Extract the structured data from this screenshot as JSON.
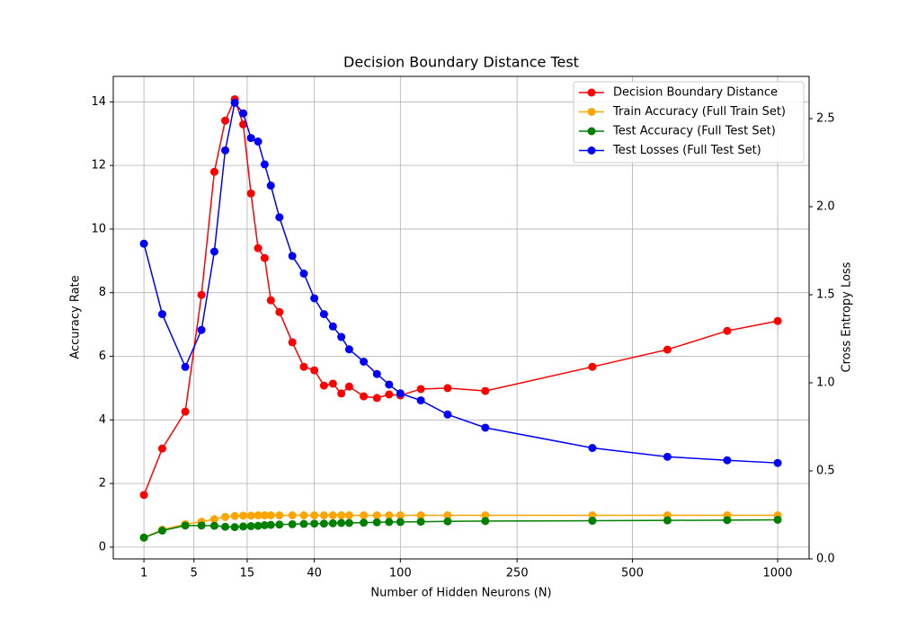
{
  "chart_data": {
    "type": "line",
    "title": "Decision Boundary Distance Test",
    "xlabel": "Number of Hidden Neurons (N)",
    "ylabel": "Accuracy Rate",
    "y2label": "Cross Entropy Loss",
    "xscale": "cbrt",
    "grid": true,
    "legend": "upper right",
    "x": [
      1,
      2,
      4,
      6,
      8,
      10,
      12,
      14,
      16,
      18,
      20,
      22,
      25,
      30,
      35,
      40,
      45,
      50,
      55,
      60,
      70,
      80,
      90,
      100,
      120,
      150,
      200,
      400,
      600,
      800,
      1000
    ],
    "xlim": [
      0.18,
      1140
    ],
    "xticks": [
      1,
      5,
      15,
      40,
      100,
      250,
      500,
      1000
    ],
    "ylim": [
      -0.37,
      14.8
    ],
    "yticks": [
      0,
      2,
      4,
      6,
      8,
      10,
      12,
      14
    ],
    "y2lim": [
      0,
      2.74
    ],
    "y2ticks": [
      {
        "value": 0,
        "label": "0.0"
      },
      {
        "value": 0.5,
        "label": "0.5"
      },
      {
        "value": 1,
        "label": "1.0"
      },
      {
        "value": 1.5,
        "label": "1.5"
      },
      {
        "value": 2,
        "label": "2.0"
      },
      {
        "value": 2.5,
        "label": "2.5"
      }
    ],
    "series": [
      {
        "name": "Decision Boundary Distance",
        "color": "#ff0000",
        "values": [
          1.64,
          3.1,
          4.26,
          7.93,
          11.8,
          13.41,
          14.08,
          13.29,
          11.12,
          9.4,
          9.09,
          7.76,
          7.39,
          6.44,
          5.67,
          5.56,
          5.08,
          5.14,
          4.83,
          5.05,
          4.74,
          4.69,
          4.8,
          4.77,
          4.97,
          5.0,
          4.91,
          5.67,
          6.21,
          6.8,
          7.11
        ]
      },
      {
        "name": "Train Accuracy (Full Train Set)",
        "color": "#ffa500",
        "values": [
          0.3,
          0.55,
          0.72,
          0.8,
          0.88,
          0.95,
          0.98,
          0.99,
          0.99,
          1.0,
          1.0,
          1.0,
          1.0,
          1.0,
          1.0,
          1.0,
          1.0,
          1.0,
          1.0,
          1.0,
          1.0,
          1.0,
          1.0,
          1.0,
          1.0,
          1.0,
          1.0,
          1.0,
          1.0,
          1.0,
          1.0
        ]
      },
      {
        "name": "Test Accuracy (Full Test Set)",
        "color": "#008000",
        "values": [
          0.3,
          0.52,
          0.68,
          0.68,
          0.67,
          0.64,
          0.63,
          0.65,
          0.66,
          0.67,
          0.69,
          0.7,
          0.71,
          0.72,
          0.73,
          0.74,
          0.74,
          0.75,
          0.76,
          0.76,
          0.77,
          0.78,
          0.79,
          0.79,
          0.8,
          0.81,
          0.82,
          0.83,
          0.84,
          0.85,
          0.86
        ]
      },
      {
        "name": "Test Losses (Full Test Set)",
        "color": "#0000ff",
        "axis": "y2",
        "values": [
          1.79,
          1.39,
          1.09,
          1.3,
          1.745,
          2.32,
          2.59,
          2.53,
          2.39,
          2.37,
          2.24,
          2.12,
          1.94,
          1.72,
          1.62,
          1.48,
          1.39,
          1.32,
          1.26,
          1.19,
          1.12,
          1.05,
          0.99,
          0.94,
          0.9,
          0.82,
          0.745,
          0.63,
          0.58,
          0.56,
          0.545
        ]
      }
    ]
  }
}
